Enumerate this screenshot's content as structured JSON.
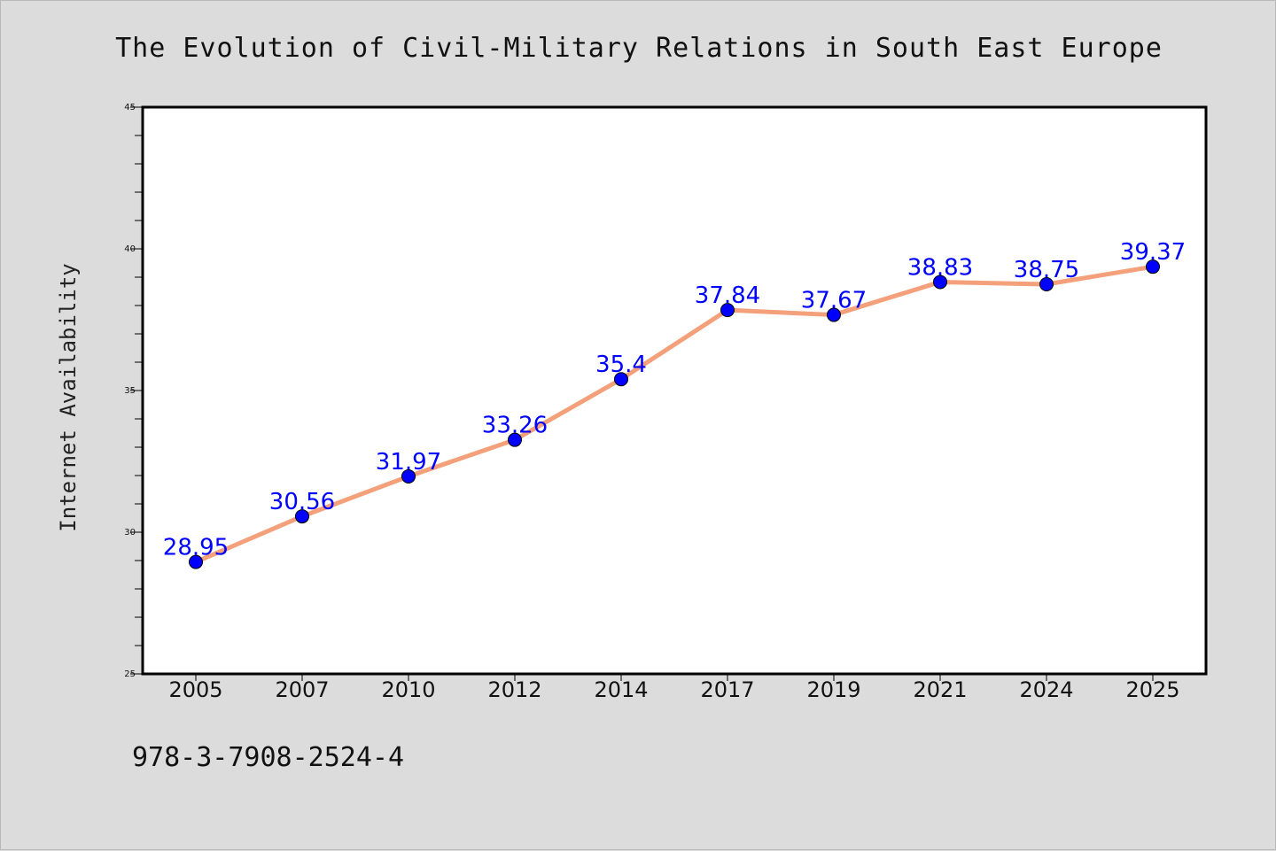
{
  "chart_data": {
    "type": "line",
    "title": "The Evolution of Civil-Military Relations in South East Europe",
    "xlabel": "",
    "ylabel": "Internet Availability",
    "categories": [
      "2005",
      "2007",
      "2010",
      "2012",
      "2014",
      "2017",
      "2019",
      "2021",
      "2024",
      "2025"
    ],
    "series": [
      {
        "values": [
          28.95,
          30.56,
          31.97,
          33.26,
          35.4,
          37.84,
          37.67,
          38.83,
          38.75,
          39.37
        ],
        "labels": [
          "28.95",
          "30.56",
          "31.97",
          "33.26",
          "35.4",
          "37.84",
          "37.67",
          "38.83",
          "38.75",
          "39.37"
        ],
        "line_color": "#f4a07a",
        "marker_color": "#0000ff"
      }
    ],
    "ylim": [
      25,
      45
    ],
    "yticks": [
      "25",
      "30",
      "35",
      "40",
      "45"
    ],
    "y_minor_step": 1,
    "grid": false,
    "legend": "none"
  },
  "footer": {
    "code": "978-3-7908-2524-4"
  },
  "colors": {
    "background": "#dcdcdc",
    "plot_background": "#ffffff",
    "axis": "#000000",
    "data_label": "#0000ff"
  }
}
